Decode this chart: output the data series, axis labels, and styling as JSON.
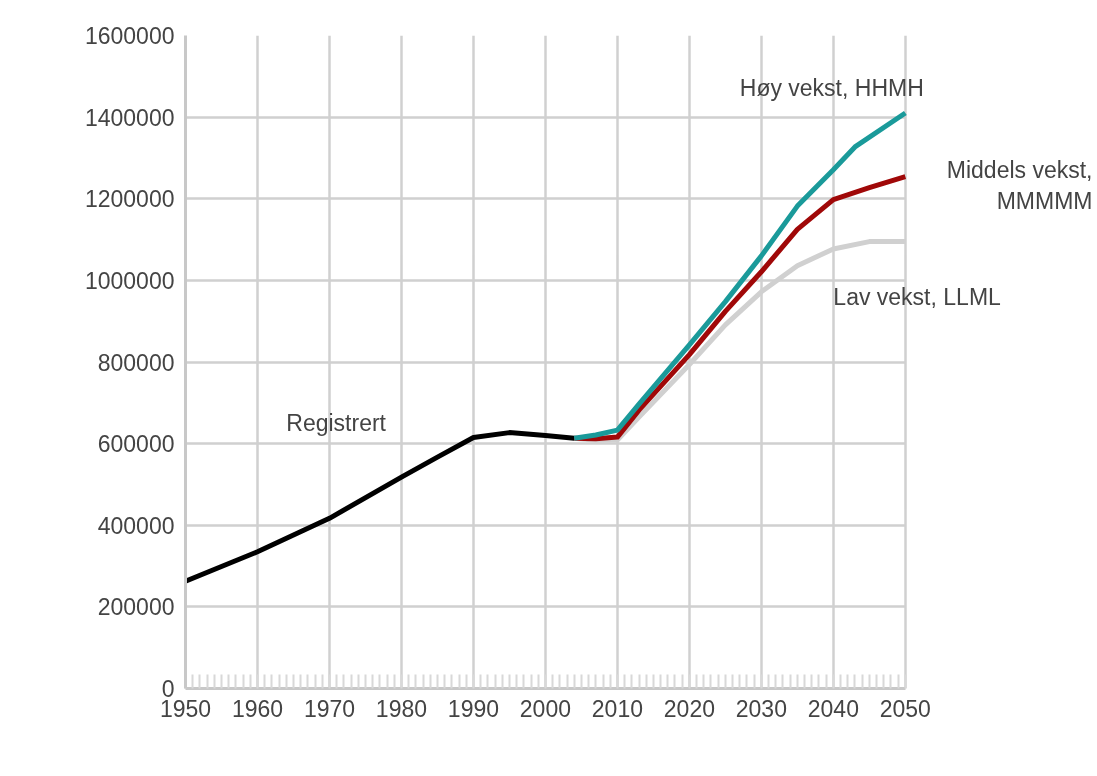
{
  "chart_data": {
    "type": "line",
    "xlim": [
      1950,
      2050
    ],
    "xticks": [
      1950,
      1960,
      1970,
      1980,
      1990,
      2000,
      2010,
      2020,
      2030,
      2040,
      2050
    ],
    "ylim": [
      0,
      1600000
    ],
    "yticks": [
      0,
      200000,
      400000,
      600000,
      800000,
      1000000,
      1200000,
      1400000,
      1600000
    ],
    "grid": true,
    "marker": "none",
    "line_style": "solid",
    "series": [
      {
        "color": "#000000",
        "x": [
          1950,
          1960,
          1965,
          1970,
          1980,
          1985,
          1990,
          1995,
          2000,
          2004
        ],
        "values": [
          263000,
          335000,
          376000,
          417000,
          518000,
          567000,
          615000,
          627000,
          620000,
          613000
        ]
      },
      {
        "color": "#d0d0d0",
        "x": [
          2004,
          2007,
          2010,
          2013,
          2020,
          2025,
          2030,
          2035,
          2040,
          2045,
          2050
        ],
        "values": [
          613000,
          608000,
          609000,
          665000,
          794000,
          891000,
          972000,
          1036000,
          1077000,
          1095000,
          1095000
        ]
      },
      {
        "color": "#a00808",
        "x": [
          2004,
          2007,
          2010,
          2013,
          2020,
          2025,
          2030,
          2035,
          2040,
          2045,
          2050
        ],
        "values": [
          613000,
          612000,
          616000,
          682000,
          818000,
          924000,
          1021000,
          1125000,
          1198000,
          1227000,
          1254000
        ]
      },
      {
        "color": "#1a9a9a",
        "x": [
          2004,
          2007,
          2010,
          2013,
          2020,
          2025,
          2030,
          2035,
          2040,
          2043,
          2050
        ],
        "values": [
          613000,
          621000,
          633000,
          697000,
          842000,
          948000,
          1060000,
          1182000,
          1271000,
          1327000,
          1410000
        ]
      }
    ],
    "annotations": [
      "Registrert",
      "Høy vekst, HHMH",
      "Middels vekst,\nMMMMM",
      "Lav vekst, LLML"
    ]
  }
}
